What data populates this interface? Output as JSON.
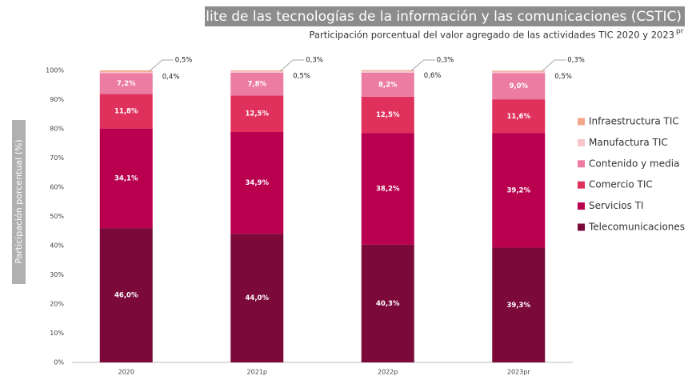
{
  "chart_data": {
    "type": "stacked_bar",
    "title": "Cuenta satélite de las tecnologías de la información y las comunicaciones (CSTIC)",
    "subtitle": "Participación porcentual del valor agregado de las actividades TIC  2020 y 2023",
    "subtitle_sup": "pr",
    "y_label": "Participación porcentual (%)",
    "categories": [
      "2020",
      "2021p",
      "2022p",
      "2023pr"
    ],
    "series": [
      {
        "name": "Telecomunicaciones",
        "color": "#7b0a3b",
        "values": [
          46.0,
          44.0,
          40.3,
          39.3
        ],
        "value_labels": [
          "46,0%",
          "44,0%",
          "40,3%",
          "39,3%"
        ]
      },
      {
        "name": "Servicios TI",
        "color": "#b8004f",
        "values": [
          34.1,
          34.9,
          38.2,
          39.2
        ],
        "value_labels": [
          "34,1%",
          "34,9%",
          "38,2%",
          "39,2%"
        ]
      },
      {
        "name": "Comercio TIC",
        "color": "#e0305c",
        "values": [
          11.8,
          12.5,
          12.5,
          11.6
        ],
        "value_labels": [
          "11,8%",
          "12,5%",
          "12,5%",
          "11,6%"
        ]
      },
      {
        "name": "Contenido y media",
        "color": "#ec7ca2",
        "values": [
          7.2,
          7.8,
          8.2,
          9.0
        ],
        "value_labels": [
          "7,2%",
          "7,8%",
          "8,2%",
          "9,0%"
        ]
      },
      {
        "name": "Manufactura TIC",
        "color": "#f6c6cb",
        "values": [
          0.4,
          0.5,
          0.6,
          0.5
        ],
        "value_labels": [
          "0,4%",
          "0,5%",
          "0,6%",
          "0,5%"
        ]
      },
      {
        "name": "Infraestructura TIC",
        "color": "#f2a58b",
        "values": [
          0.5,
          0.3,
          0.3,
          0.3
        ],
        "value_labels": [
          "0,5%",
          "0,3%",
          "0,3%",
          "0,3%"
        ]
      }
    ],
    "ylim": [
      0,
      100
    ],
    "yticks": [
      {
        "value": 0,
        "label": "0%"
      },
      {
        "value": 10,
        "label": "10%"
      },
      {
        "value": 20,
        "label": "20%"
      },
      {
        "value": 30,
        "label": "30%"
      },
      {
        "value": 40,
        "label": "40%"
      },
      {
        "value": 50,
        "label": "50%"
      },
      {
        "value": 60,
        "label": "60%"
      },
      {
        "value": 70,
        "label": "70%"
      },
      {
        "value": 80,
        "label": "80%"
      },
      {
        "value": 90,
        "label": "90%"
      },
      {
        "value": 100,
        "label": "100%"
      }
    ],
    "grid": false,
    "legend": "right"
  }
}
